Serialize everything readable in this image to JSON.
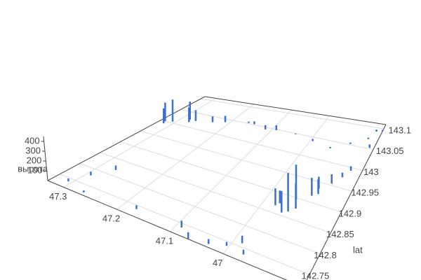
{
  "chart_data": {
    "type": "bar3d",
    "color": "#3d6fcf",
    "grid": true,
    "y_title": "lat",
    "z_title": "высота",
    "xlim": [
      46.85,
      47.33
    ],
    "ylim": [
      142.72,
      143.11
    ],
    "zlim": [
      0,
      450
    ],
    "xticks": [
      47,
      47.1,
      47.2,
      47.3
    ],
    "yticks": [
      142.75,
      142.8,
      142.85,
      142.9,
      142.95,
      143,
      143.05,
      143.1
    ],
    "zticks": [
      100,
      200,
      300,
      400
    ],
    "x": [
      47.32,
      47.316,
      47.306,
      47.282,
      47.277,
      47.268,
      47.234,
      47.21,
      47.162,
      47.148,
      47.114,
      47.09,
      47.042,
      46.994,
      46.946,
      46.908,
      46.874,
      46.864,
      46.85,
      46.86,
      46.874,
      47.306,
      47.292,
      47.272,
      47.268,
      47.176,
      47.09,
      47.066,
      47.032,
      47.004,
      46.97,
      46.984,
      46.956,
      46.946,
      46.946,
      46.936,
      46.97,
      46.922,
      46.917,
      46.912,
      46.898,
      46.884,
      46.975
    ],
    "y": [
      143.001,
      142.993,
      143.005,
      143.024,
      143.016,
      143.024,
      143.032,
      143.04,
      143.052,
      143.052,
      143.044,
      143.048,
      143.048,
      143.04,
      143.032,
      143.052,
      143.071,
      143.091,
      143.094,
      143.052,
      142.993,
      142.74,
      142.779,
      142.818,
      142.728,
      142.74,
      142.74,
      142.72,
      142.728,
      142.74,
      142.736,
      142.759,
      142.857,
      142.864,
      142.896,
      142.876,
      142.876,
      142.915,
      142.935,
      142.923,
      142.954,
      142.974,
      142.868
    ],
    "z": [
      250,
      200,
      300,
      250,
      200,
      150,
      80,
      90,
      20,
      40,
      60,
      70,
      10,
      30,
      20,
      20,
      20,
      30,
      20,
      50,
      60,
      30,
      40,
      50,
      20,
      40,
      70,
      70,
      50,
      40,
      50,
      80,
      250,
      450,
      420,
      300,
      150,
      220,
      150,
      180,
      120,
      60,
      200
    ]
  }
}
